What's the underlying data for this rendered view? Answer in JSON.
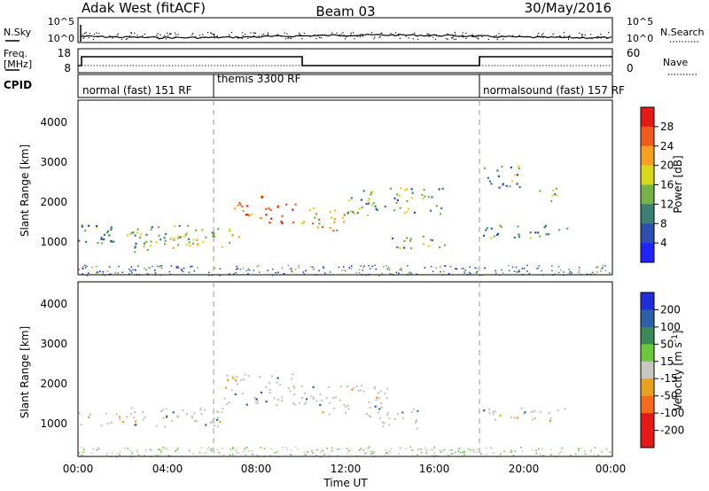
{
  "header": {
    "station": "Adak West (fitACF)",
    "beam": "Beam 03",
    "date": "30/May/2016"
  },
  "noise_panel": {
    "left_label": "N.Sky",
    "right_label": "N.Search",
    "left_ticks": [
      "10^5",
      "10^0"
    ],
    "right_ticks": [
      "10^5",
      "10^0"
    ]
  },
  "freq_panel": {
    "left_label_line1": "Freq.",
    "left_label_line2": "[MHz]",
    "right_label": "Nave",
    "left_ticks": [
      "18",
      "8"
    ],
    "right_ticks": [
      "60",
      "0"
    ]
  },
  "cpid_panel": {
    "label": "CPID",
    "segments": [
      {
        "text": "normal (fast) 151 RF",
        "start_hour": 0
      },
      {
        "text": "themis 3300 RF",
        "start_hour": 6
      },
      {
        "text": "normalsound (fast) 157 RF",
        "start_hour": 18
      }
    ]
  },
  "chart_data": [
    {
      "type": "heatmap",
      "name": "power",
      "ylabel": "Slant Range [km]",
      "ylim": [
        180,
        4600
      ],
      "yticks": [
        "1000",
        "2000",
        "3000",
        "4000"
      ],
      "colorbar_label": "Power [dB]",
      "colorbar_ticks": [
        "4",
        "8",
        "12",
        "16",
        "20",
        "24",
        "28"
      ],
      "colorbar_colors": [
        "#1f24ff",
        "#2f4fb0",
        "#3c7f74",
        "#75b24a",
        "#d8d81c",
        "#f5a023",
        "#ef5a1e",
        "#e61919"
      ],
      "regions": [
        {
          "t": [
            0.0,
            3.7
          ],
          "r": [
            950,
            1450
          ],
          "level": 0.3
        },
        {
          "t": [
            2.5,
            3.5
          ],
          "r": [
            700,
            1300
          ],
          "level": 0.55
        },
        {
          "t": [
            3.5,
            6.5
          ],
          "r": [
            900,
            1450
          ],
          "level": 0.45
        },
        {
          "t": [
            4.0,
            5.5
          ],
          "r": [
            850,
            1250
          ],
          "level": 0.6
        },
        {
          "t": [
            6.5,
            7.3
          ],
          "r": [
            1000,
            1400
          ],
          "level": 0.55
        },
        {
          "t": [
            7.0,
            8.3
          ],
          "r": [
            1700,
            2300
          ],
          "level": 0.8
        },
        {
          "t": [
            8.0,
            10.0
          ],
          "r": [
            1500,
            2000
          ],
          "level": 0.95
        },
        {
          "t": [
            10.0,
            12.0
          ],
          "r": [
            1300,
            1900
          ],
          "level": 0.65
        },
        {
          "t": [
            12.0,
            16.5
          ],
          "r": [
            1700,
            2400
          ],
          "level": 0.4
        },
        {
          "t": [
            14.0,
            16.5
          ],
          "r": [
            850,
            1200
          ],
          "level": 0.35
        },
        {
          "t": [
            18.0,
            22.0
          ],
          "r": [
            1100,
            1450
          ],
          "level": 0.3
        },
        {
          "t": [
            18.2,
            20.0
          ],
          "r": [
            2400,
            3000
          ],
          "level": 0.3
        },
        {
          "t": [
            20.5,
            21.5
          ],
          "r": [
            2000,
            2400
          ],
          "level": 0.45
        }
      ]
    },
    {
      "type": "heatmap",
      "name": "velocity",
      "ylabel": "Slant Range [km]",
      "ylim": [
        180,
        4600
      ],
      "yticks": [
        "1000",
        "2000",
        "3000",
        "4000"
      ],
      "colorbar_label_html": true,
      "colorbar_label_prefix": "Velocity [m s",
      "colorbar_label_sup": "-1",
      "colorbar_label_suffix": "]",
      "colorbar_ticks": [
        "200",
        "100",
        "50",
        "15",
        "-15",
        "-50",
        "-100",
        "-200"
      ],
      "colorbar_colors": [
        "#1e2dd8",
        "#2b61a8",
        "#3d8a58",
        "#6bc73c",
        "#c8c8c0",
        "#e8a020",
        "#f56a1c",
        "#e61919",
        "#e61919"
      ],
      "regions": [
        {
          "t": [
            0.0,
            6.5
          ],
          "r": [
            950,
            1450
          ],
          "level": 0.5
        },
        {
          "t": [
            6.5,
            10.0
          ],
          "r": [
            1500,
            2300
          ],
          "level": 0.5
        },
        {
          "t": [
            10.0,
            14.0
          ],
          "r": [
            1200,
            2000
          ],
          "level": 0.45
        },
        {
          "t": [
            13.5,
            15.5
          ],
          "r": [
            900,
            1400
          ],
          "level": 0.2
        },
        {
          "t": [
            18.0,
            22.0
          ],
          "r": [
            1100,
            1450
          ],
          "level": 0.5
        }
      ]
    }
  ],
  "time_axis": {
    "xlabel": "Time UT",
    "ticks": [
      "00:00",
      "04:00",
      "08:00",
      "12:00",
      "16:00",
      "20:00",
      "00:00"
    ],
    "xlim_hours": [
      0,
      24
    ]
  }
}
